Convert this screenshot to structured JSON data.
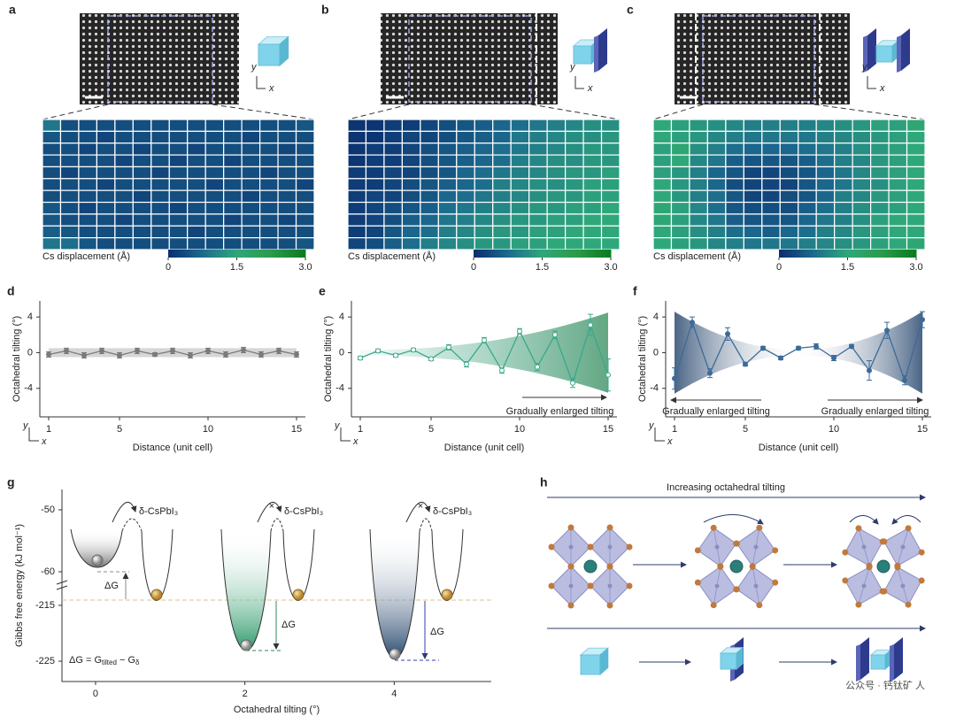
{
  "chart_data": [
    {
      "type": "heatmap",
      "panel": "a",
      "inset_axes": [
        "y",
        "x"
      ],
      "values": [
        [
          0.9,
          0.4,
          0.4,
          0.4,
          0.4,
          0.4,
          0.4,
          0.4,
          0.4,
          0.4,
          0.4,
          0.4,
          0.4,
          0.4,
          0.5
        ],
        [
          0.5,
          0.4,
          0.4,
          0.3,
          0.4,
          0.4,
          0.4,
          0.4,
          0.4,
          0.4,
          0.4,
          0.3,
          0.4,
          0.4,
          0.4
        ],
        [
          0.4,
          0.4,
          0.3,
          0.4,
          0.4,
          0.3,
          0.4,
          0.4,
          0.3,
          0.4,
          0.4,
          0.4,
          0.4,
          0.3,
          0.4
        ],
        [
          0.4,
          0.4,
          0.4,
          0.4,
          0.3,
          0.4,
          0.4,
          0.3,
          0.4,
          0.4,
          0.3,
          0.4,
          0.4,
          0.4,
          0.4
        ],
        [
          0.4,
          0.3,
          0.4,
          0.4,
          0.4,
          0.4,
          0.3,
          0.4,
          0.4,
          0.4,
          0.4,
          0.4,
          0.3,
          0.4,
          0.4
        ],
        [
          0.4,
          0.4,
          0.4,
          0.3,
          0.4,
          0.4,
          0.4,
          0.4,
          0.4,
          0.3,
          0.4,
          0.4,
          0.4,
          0.4,
          0.3
        ],
        [
          0.4,
          0.4,
          0.4,
          0.4,
          0.4,
          0.3,
          0.4,
          0.4,
          0.4,
          0.4,
          0.4,
          0.3,
          0.4,
          0.4,
          0.4
        ],
        [
          0.5,
          0.4,
          0.3,
          0.4,
          0.4,
          0.4,
          0.4,
          0.3,
          0.4,
          0.4,
          0.4,
          0.4,
          0.4,
          0.4,
          0.4
        ],
        [
          0.5,
          0.4,
          0.4,
          0.4,
          0.3,
          0.4,
          0.4,
          0.4,
          0.4,
          0.4,
          0.3,
          0.4,
          0.4,
          0.3,
          0.4
        ],
        [
          0.6,
          0.5,
          0.4,
          0.4,
          0.4,
          0.4,
          0.4,
          0.4,
          0.3,
          0.4,
          0.4,
          0.4,
          0.4,
          0.4,
          0.4
        ],
        [
          0.9,
          0.8,
          0.5,
          0.4,
          0.4,
          0.4,
          0.4,
          0.4,
          0.4,
          0.4,
          0.4,
          0.4,
          0.4,
          0.4,
          0.5
        ]
      ],
      "colorbar": {
        "label": "Cs displacement (Å)",
        "lim": [
          0,
          3
        ],
        "ticks": [
          0,
          1.5,
          {
            "value": 3,
            "label": "3.0"
          }
        ],
        "colors": [
          "#0a2d6e",
          "#1c6a8e",
          "#2ea87a",
          "#2c9a4a",
          "#0b7a1f"
        ]
      }
    },
    {
      "type": "heatmap",
      "panel": "b",
      "inset_axes": [
        "y",
        "x"
      ],
      "values": [
        [
          0.1,
          0.1,
          0.2,
          0.2,
          0.3,
          0.4,
          0.5,
          0.6,
          0.7,
          0.8,
          0.9,
          1.0,
          1.1,
          1.2,
          1.2
        ],
        [
          0.1,
          0.1,
          0.2,
          0.3,
          0.3,
          0.4,
          0.5,
          0.6,
          0.7,
          0.9,
          1.0,
          1.1,
          1.2,
          1.2,
          1.3
        ],
        [
          0.1,
          0.2,
          0.2,
          0.3,
          0.4,
          0.5,
          0.6,
          0.7,
          0.8,
          0.9,
          1.0,
          1.1,
          1.2,
          1.3,
          1.3
        ],
        [
          0.1,
          0.2,
          0.2,
          0.3,
          0.4,
          0.5,
          0.6,
          0.7,
          0.8,
          1.0,
          1.1,
          1.2,
          1.2,
          1.3,
          1.3
        ],
        [
          0.2,
          0.2,
          0.3,
          0.3,
          0.4,
          0.5,
          0.7,
          0.8,
          0.9,
          1.0,
          1.1,
          1.2,
          1.3,
          1.3,
          1.4
        ],
        [
          0.2,
          0.2,
          0.3,
          0.4,
          0.5,
          0.6,
          0.7,
          0.8,
          1.0,
          1.1,
          1.2,
          1.2,
          1.3,
          1.4,
          1.4
        ],
        [
          0.2,
          0.3,
          0.3,
          0.4,
          0.5,
          0.7,
          0.8,
          0.9,
          1.0,
          1.1,
          1.2,
          1.3,
          1.3,
          1.4,
          1.4
        ],
        [
          0.2,
          0.3,
          0.4,
          0.5,
          0.6,
          0.8,
          0.9,
          1.0,
          1.1,
          1.2,
          1.3,
          1.3,
          1.4,
          1.4,
          1.5
        ],
        [
          0.2,
          0.3,
          0.4,
          0.6,
          0.7,
          0.9,
          1.0,
          1.1,
          1.2,
          1.3,
          1.3,
          1.4,
          1.4,
          1.5,
          1.5
        ],
        [
          0.2,
          0.3,
          0.5,
          0.7,
          0.8,
          1.0,
          1.1,
          1.2,
          1.3,
          1.3,
          1.4,
          1.4,
          1.5,
          1.5,
          1.5
        ],
        [
          0.3,
          0.4,
          0.6,
          0.8,
          1.0,
          1.1,
          1.2,
          1.3,
          1.3,
          1.4,
          1.4,
          1.5,
          1.5,
          1.5,
          1.5
        ]
      ],
      "colorbar": {
        "label": "Cs displacement (Å)",
        "lim": [
          0,
          3
        ],
        "ticks": [
          0,
          1.5,
          {
            "value": 3,
            "label": "3.0"
          }
        ],
        "colors": [
          "#0a2d6e",
          "#1c6a8e",
          "#2ea87a",
          "#2c9a4a",
          "#0b7a1f"
        ]
      }
    },
    {
      "type": "heatmap",
      "panel": "c",
      "inset_axes": [
        "y",
        "x"
      ],
      "values": [
        [
          1.5,
          1.4,
          1.3,
          1.2,
          1.1,
          1.0,
          1.0,
          1.0,
          1.0,
          1.1,
          1.2,
          1.3,
          1.4,
          1.4,
          1.6
        ],
        [
          1.5,
          1.4,
          1.3,
          1.1,
          1.0,
          0.9,
          0.9,
          0.9,
          0.9,
          1.0,
          1.1,
          1.2,
          1.3,
          1.4,
          1.5
        ],
        [
          1.4,
          1.6,
          1.2,
          1.0,
          0.8,
          0.7,
          0.7,
          0.7,
          0.8,
          0.9,
          1.0,
          1.2,
          1.3,
          1.4,
          1.5
        ],
        [
          1.4,
          1.5,
          1.1,
          0.9,
          0.6,
          0.5,
          0.5,
          0.5,
          0.6,
          0.8,
          1.0,
          1.1,
          1.3,
          1.4,
          1.5
        ],
        [
          1.4,
          1.3,
          1.0,
          0.7,
          0.5,
          0.3,
          0.3,
          0.4,
          0.5,
          0.7,
          0.9,
          1.1,
          1.3,
          1.4,
          1.5
        ],
        [
          1.5,
          1.3,
          1.0,
          0.7,
          0.4,
          0.3,
          0.3,
          0.3,
          0.5,
          0.7,
          0.9,
          1.1,
          1.2,
          1.4,
          1.5
        ],
        [
          1.5,
          1.3,
          1.0,
          0.8,
          0.5,
          0.3,
          0.3,
          0.4,
          0.5,
          0.7,
          1.0,
          1.1,
          1.3,
          1.4,
          1.5
        ],
        [
          1.6,
          1.4,
          1.1,
          0.8,
          0.5,
          0.4,
          0.4,
          0.4,
          0.6,
          0.8,
          1.0,
          1.2,
          1.3,
          1.4,
          1.5
        ],
        [
          1.6,
          1.4,
          1.1,
          0.9,
          0.6,
          0.5,
          0.5,
          0.5,
          0.7,
          0.9,
          1.0,
          1.2,
          1.4,
          1.5,
          1.5
        ],
        [
          1.5,
          1.4,
          1.2,
          1.0,
          0.8,
          0.7,
          0.6,
          0.7,
          0.8,
          1.0,
          1.1,
          1.3,
          1.4,
          1.5,
          1.5
        ],
        [
          1.5,
          1.4,
          1.3,
          1.1,
          1.0,
          0.9,
          0.9,
          0.9,
          1.0,
          1.1,
          1.2,
          1.3,
          1.4,
          1.5,
          1.6
        ]
      ],
      "colorbar": {
        "label": "Cs displacement (Å)",
        "lim": [
          0,
          3
        ],
        "ticks": [
          0,
          1.5,
          {
            "value": 3,
            "label": "3.0"
          }
        ],
        "colors": [
          "#0a2d6e",
          "#1c6a8e",
          "#2ea87a",
          "#2c9a4a",
          "#0b7a1f"
        ]
      }
    },
    {
      "type": "line",
      "panel": "d",
      "color": "#7a7a7a",
      "envelope": "flat",
      "axis_glyph": [
        "y",
        "x"
      ],
      "x": [
        1,
        2,
        3,
        4,
        5,
        6,
        7,
        8,
        9,
        10,
        11,
        12,
        13,
        14,
        15
      ],
      "values": [
        -0.2,
        0.2,
        -0.3,
        0.2,
        -0.3,
        0.2,
        -0.2,
        0.2,
        -0.3,
        0.2,
        -0.2,
        0.3,
        -0.2,
        0.2,
        -0.2
      ],
      "errors": [
        0.3,
        0.3,
        0.3,
        0.3,
        0.3,
        0.3,
        0.2,
        0.3,
        0.3,
        0.3,
        0.3,
        0.3,
        0.3,
        0.3,
        0.3
      ],
      "xlim": [
        0.5,
        15.5
      ],
      "ylim": [
        -7.2,
        5.8
      ],
      "xticks": [
        1,
        5,
        10,
        15
      ],
      "yticks": [
        -4,
        0,
        4
      ],
      "xlabel": "Distance (unit cell)",
      "ylabel": "Octahedral tilting (°)",
      "annotations": []
    },
    {
      "type": "line",
      "panel": "e",
      "color": "#3aa88c",
      "envelope": "right",
      "axis_glyph": [
        "y",
        "x"
      ],
      "x": [
        1,
        2,
        3,
        4,
        5,
        6,
        7,
        8,
        9,
        10,
        11,
        12,
        13,
        14,
        15
      ],
      "values": [
        -0.6,
        0.2,
        -0.3,
        0.3,
        -0.7,
        0.6,
        -1.3,
        1.4,
        -2.0,
        2.4,
        -1.6,
        2.0,
        -3.4,
        3.1,
        -2.5
      ],
      "errors": [
        0.2,
        0.2,
        0.2,
        0.2,
        0.2,
        0.3,
        0.3,
        0.3,
        0.3,
        0.3,
        0.4,
        0.4,
        0.5,
        1.2,
        1.8
      ],
      "xlim": [
        0.5,
        15.5
      ],
      "ylim": [
        -7.2,
        5.8
      ],
      "xticks": [
        1,
        5,
        10,
        15
      ],
      "yticks": [
        -4,
        0,
        4
      ],
      "xlabel": "Distance (unit cell)",
      "ylabel": "Octahedral tilting (°)",
      "annotations": [
        "Gradually enlarged tilting"
      ]
    },
    {
      "type": "line",
      "panel": "f",
      "color": "#3d6a99",
      "envelope": "both",
      "axis_glyph": [
        "y",
        "x"
      ],
      "x": [
        1,
        2,
        3,
        4,
        5,
        6,
        7,
        8,
        9,
        10,
        11,
        12,
        13,
        14,
        15
      ],
      "values": [
        -2.9,
        3.4,
        -2.3,
        2.1,
        -1.3,
        0.5,
        -0.6,
        0.5,
        0.7,
        -0.6,
        0.7,
        -2.0,
        2.5,
        -3.1,
        3.7
      ],
      "errors": [
        1.2,
        0.6,
        0.5,
        0.7,
        0.2,
        0.2,
        0.2,
        0.2,
        0.3,
        0.3,
        0.2,
        1.1,
        0.9,
        0.5,
        0.9
      ],
      "xlim": [
        0.5,
        15.5
      ],
      "ylim": [
        -7.2,
        5.8
      ],
      "xticks": [
        1,
        5,
        10,
        15
      ],
      "yticks": [
        -4,
        0,
        4
      ],
      "xlabel": "Distance (unit cell)",
      "ylabel": "Octahedral tilting (°)",
      "annotations": [
        "Gradually enlarged tilting",
        "Gradually enlarged tilting"
      ]
    }
  ],
  "panel_g": {
    "panel": "g",
    "ylabel": "Gibbs free energy (kJ mol⁻¹)",
    "xlabel": "Octahedral tilting (°)",
    "xlim": [
      -0.45,
      5.3
    ],
    "xticks": [
      0,
      2,
      4
    ],
    "ylim_segments": [
      [
        -62,
        -47
      ],
      [
        -228,
        -212
      ]
    ],
    "yticks": [
      -50,
      -60,
      -215,
      -225
    ],
    "phase_labels": [
      "δ-CsPbI₃",
      "δ-CsPbI₃",
      "δ-CsPbI₃"
    ],
    "dg_labels": [
      "ΔG",
      "ΔG",
      "ΔG"
    ],
    "equation": [
      "ΔG = G",
      "tilted",
      " − G",
      "δ"
    ]
  },
  "panel_h": {
    "panel": "h",
    "title": "Increasing octahedral tilting"
  },
  "watermark": "公众号 · 钙钛矿 人"
}
